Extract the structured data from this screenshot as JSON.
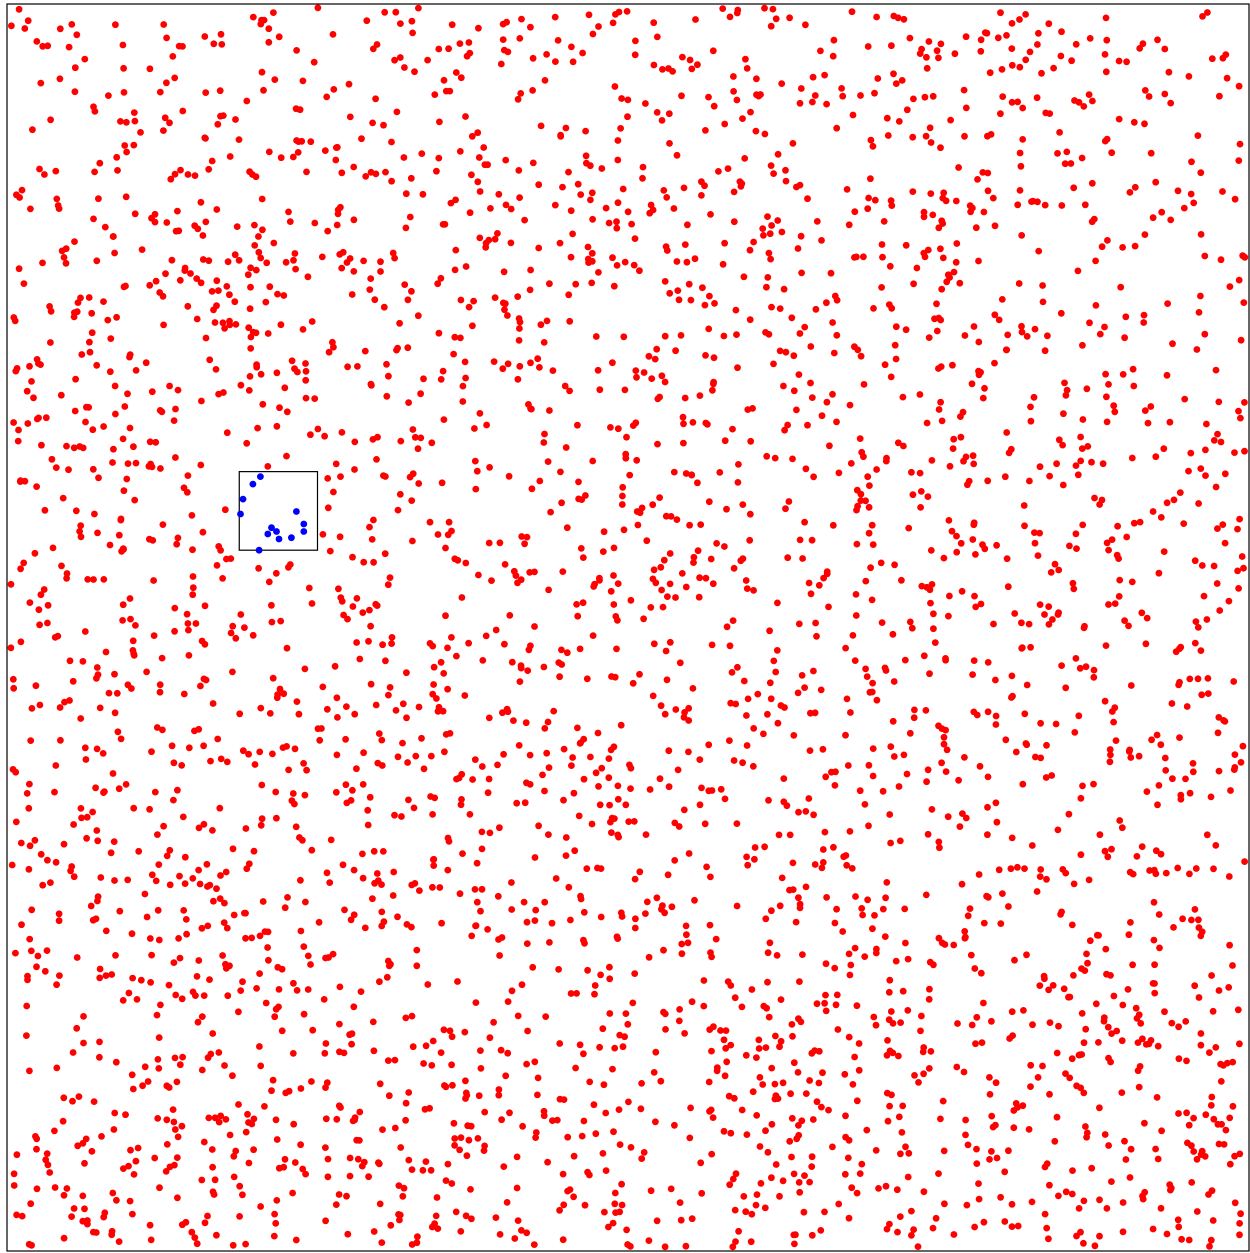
{
  "chart_data": {
    "type": "scatter",
    "title": "",
    "xlabel": "",
    "ylabel": "",
    "xlim": [
      0,
      1
    ],
    "ylim": [
      0,
      1
    ],
    "grid": false,
    "legend": "none",
    "query_box": {
      "x_range": [
        0.187,
        0.25
      ],
      "y_range": [
        0.562,
        0.625
      ]
    },
    "series": [
      {
        "color": "#ff0000",
        "role": "points outside query box",
        "generator": {
          "distribution": "uniform",
          "count": 3500,
          "seed": 1337
        }
      },
      {
        "color": "#0000ff",
        "role": "points inside query box",
        "points": [
          [
            0.204,
            0.621
          ],
          [
            0.198,
            0.615
          ],
          [
            0.19,
            0.603
          ],
          [
            0.188,
            0.591
          ],
          [
            0.233,
            0.593
          ],
          [
            0.239,
            0.583
          ],
          [
            0.239,
            0.577
          ],
          [
            0.213,
            0.58
          ],
          [
            0.217,
            0.577
          ],
          [
            0.21,
            0.575
          ],
          [
            0.219,
            0.571
          ],
          [
            0.229,
            0.572
          ],
          [
            0.203,
            0.562
          ]
        ]
      }
    ]
  }
}
